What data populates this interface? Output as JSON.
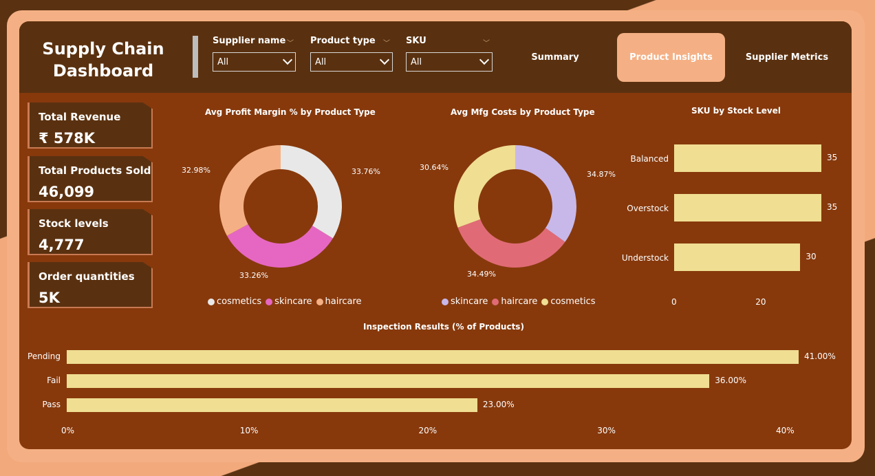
{
  "header": {
    "title_line1": "Supply Chain",
    "title_line2": "Dashboard",
    "filters": [
      {
        "label": "Supplier name",
        "value": "All"
      },
      {
        "label": "Product type",
        "value": "All"
      },
      {
        "label": "SKU",
        "value": "All"
      }
    ],
    "nav": [
      {
        "label": "Summary",
        "active": false
      },
      {
        "label": "Product Insights",
        "active": true
      },
      {
        "label": "Supplier Metrics",
        "active": false
      }
    ]
  },
  "kpis": [
    {
      "label": "Total Revenue",
      "value": "₹ 578K"
    },
    {
      "label": "Total Products Sold",
      "value": "46,099"
    },
    {
      "label": "Stock levels",
      "value": "4,777"
    },
    {
      "label": "Order quantities",
      "value": "5K"
    }
  ],
  "colors": {
    "cosmetics_profit": "#e8e8e8",
    "skincare_profit": "#e667c2",
    "haircare_profit": "#f4b084",
    "skincare_mfg": "#c8b8ea",
    "haircare_mfg": "#e06b76",
    "cosmetics_mfg": "#f0de92",
    "bar": "#f0de92"
  },
  "chart_data": [
    {
      "type": "pie",
      "title": "Avg Profit Margin % by Product Type",
      "categories": [
        "cosmetics",
        "skincare",
        "haircare"
      ],
      "values": [
        33.76,
        33.26,
        32.98
      ],
      "labels": [
        "33.76%",
        "33.26%",
        "32.98%"
      ],
      "legend": [
        "cosmetics",
        "skincare",
        "haircare"
      ]
    },
    {
      "type": "pie",
      "title": "Avg Mfg Costs by Product Type",
      "categories": [
        "skincare",
        "haircare",
        "cosmetics"
      ],
      "values": [
        34.87,
        34.49,
        30.64
      ],
      "labels": [
        "34.87%",
        "34.49%",
        "30.64%"
      ],
      "legend": [
        "skincare",
        "haircare",
        "cosmetics"
      ]
    },
    {
      "type": "bar",
      "orientation": "horizontal",
      "title": "SKU by Stock Level",
      "categories": [
        "Balanced",
        "Overstock",
        "Understock"
      ],
      "values": [
        35,
        35,
        30
      ],
      "labels": [
        "35",
        "35",
        "30"
      ],
      "xticks": [
        "0",
        "20"
      ],
      "xlim": [
        0,
        40
      ]
    },
    {
      "type": "bar",
      "orientation": "horizontal",
      "title": "Inspection Results (% of Products)",
      "categories": [
        "Pending",
        "Fail",
        "Pass"
      ],
      "values": [
        41,
        36,
        23
      ],
      "labels": [
        "41.00%",
        "36.00%",
        "23.00%"
      ],
      "xticks": [
        "0%",
        "10%",
        "20%",
        "30%",
        "40%"
      ],
      "xlim": [
        0,
        43
      ]
    }
  ]
}
